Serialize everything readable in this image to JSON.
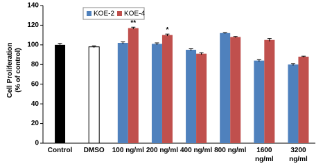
{
  "chart_data": {
    "type": "bar",
    "ylabel": "Cell Proliferation\n(% of control)",
    "categories": [
      "Control",
      "DMSO",
      "100 ng/ml",
      "200 ng/ml",
      "400 ng/ml",
      "800 ng/ml",
      "1600\nng/ml",
      "3200\nng/ml"
    ],
    "controls": {
      "values": [
        100,
        98,
        null,
        null,
        null,
        null,
        null,
        null
      ],
      "errors": [
        1.5,
        1,
        null,
        null,
        null,
        null,
        null,
        null
      ],
      "colors": [
        "#000000",
        "#ffffff"
      ]
    },
    "series": [
      {
        "name": "KOE-2",
        "color": "#4f81bd",
        "values": [
          null,
          null,
          102,
          101,
          95,
          112,
          84,
          80
        ],
        "errors": [
          null,
          null,
          1,
          1,
          1,
          0.5,
          1,
          1
        ]
      },
      {
        "name": "KOE-4",
        "color": "#c0504d",
        "values": [
          null,
          null,
          117,
          110,
          91,
          108,
          105,
          88
        ],
        "errors": [
          null,
          null,
          1,
          1,
          1,
          0.5,
          1.5,
          0.5
        ]
      }
    ],
    "annotations": [
      {
        "text": "**",
        "series": 1,
        "index": 2
      },
      {
        "text": "*",
        "series": 1,
        "index": 3
      }
    ],
    "ylim": [
      0,
      140
    ],
    "yticks": [
      0,
      20,
      40,
      60,
      80,
      100,
      120,
      140
    ],
    "legend": "upper left"
  }
}
